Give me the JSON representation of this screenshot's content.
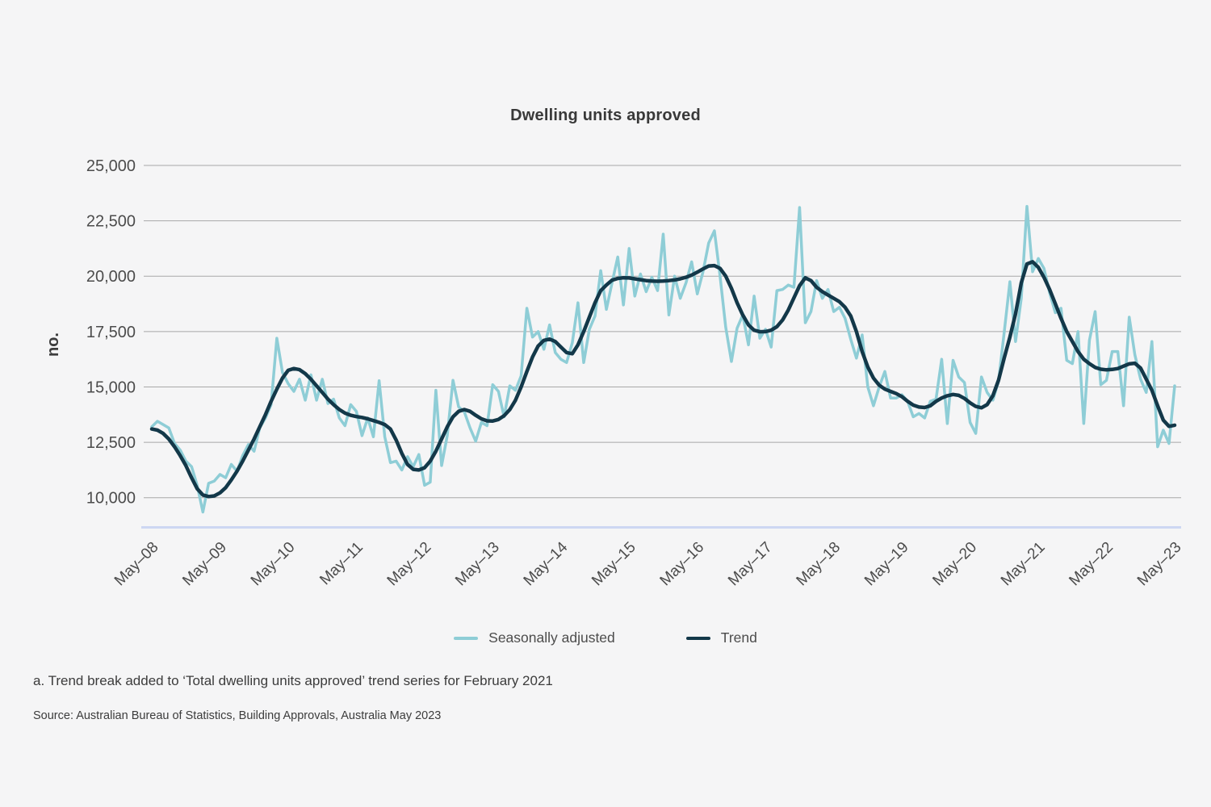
{
  "chart": {
    "title": "Dwelling units approved",
    "y_axis_label": "no.",
    "footnote": "a. Trend break added to ‘Total dwelling units approved’ trend series for February 2021",
    "source": "Source: Australian Bureau of Statistics, Building Approvals, Australia May 2023",
    "colors": {
      "background": "#f5f5f6",
      "gridline": "#a8a8a8",
      "baseline": "#cdd7f2",
      "tick_text": "#4c4c4c",
      "title_text": "#393939"
    }
  },
  "chart_data": {
    "type": "line",
    "title": "Dwelling units approved",
    "ylabel": "no.",
    "xlabel": "",
    "ylim": [
      8660,
      25000
    ],
    "y_ticks": [
      10000,
      12500,
      15000,
      17500,
      20000,
      22500,
      25000
    ],
    "x_tick_labels": [
      "May–08",
      "May–09",
      "May–10",
      "May–11",
      "May–12",
      "May–13",
      "May–14",
      "May–15",
      "May–16",
      "May–17",
      "May–18",
      "May–19",
      "May–20",
      "May–21",
      "May–22",
      "May–23"
    ],
    "x_start": "May-2008",
    "x_end": "May-2023",
    "frequency": "monthly",
    "grid": "horizontal",
    "legend_position": "bottom",
    "series": [
      {
        "name": "Seasonally adjusted",
        "color": "#8ecdd6",
        "values": [
          13200,
          13450,
          13300,
          13150,
          12450,
          12150,
          11650,
          11400,
          10550,
          9350,
          10650,
          10750,
          11050,
          10900,
          11500,
          11200,
          11900,
          12400,
          12100,
          13150,
          13600,
          14200,
          17200,
          15650,
          15150,
          14800,
          15350,
          14400,
          15550,
          14400,
          15350,
          14250,
          14450,
          13600,
          13250,
          14200,
          13900,
          12800,
          13600,
          12750,
          15280,
          12750,
          11580,
          11650,
          11250,
          11850,
          11400,
          11950,
          10560,
          10700,
          14850,
          11450,
          12800,
          15300,
          14100,
          13880,
          13150,
          12550,
          13400,
          13250,
          15100,
          14800,
          13650,
          15050,
          14850,
          15500,
          18550,
          17250,
          17500,
          16700,
          17800,
          16550,
          16250,
          16100,
          17000,
          18800,
          16100,
          17600,
          18200,
          20250,
          18500,
          19700,
          20870,
          18700,
          21250,
          19100,
          20100,
          19300,
          19950,
          19350,
          21900,
          18250,
          20000,
          19000,
          19700,
          20650,
          19200,
          20200,
          21500,
          22050,
          20000,
          17700,
          16150,
          17650,
          18250,
          16900,
          19100,
          17200,
          17600,
          16800,
          19350,
          19400,
          19600,
          19500,
          23100,
          17900,
          18400,
          19800,
          19000,
          19400,
          18400,
          18600,
          18100,
          17150,
          16300,
          17350,
          15000,
          14150,
          15000,
          15700,
          14500,
          14500,
          14650,
          14350,
          13650,
          13800,
          13600,
          14350,
          14450,
          16250,
          13350,
          16200,
          15450,
          15200,
          13400,
          12900,
          15450,
          14750,
          14400,
          15250,
          17450,
          19750,
          17050,
          19000,
          23150,
          20200,
          20800,
          20350,
          19250,
          18350,
          18550,
          16200,
          16050,
          17500,
          13350,
          17100,
          18400,
          15100,
          15300,
          16600,
          16600,
          14150,
          18150,
          16450,
          15350,
          14750,
          17050,
          12300,
          13050,
          12450,
          15050
        ]
      },
      {
        "name": "Trend",
        "color": "#133849",
        "values": [
          13100,
          13050,
          12900,
          12650,
          12300,
          11900,
          11450,
          10900,
          10400,
          10120,
          10050,
          10080,
          10220,
          10450,
          10800,
          11200,
          11650,
          12150,
          12650,
          13200,
          13750,
          14350,
          14900,
          15400,
          15750,
          15830,
          15780,
          15600,
          15350,
          15050,
          14750,
          14450,
          14200,
          13980,
          13820,
          13720,
          13660,
          13620,
          13560,
          13480,
          13400,
          13300,
          13100,
          12600,
          12000,
          11500,
          11280,
          11250,
          11350,
          11650,
          12100,
          12650,
          13200,
          13650,
          13900,
          13980,
          13900,
          13720,
          13560,
          13470,
          13460,
          13530,
          13700,
          13980,
          14400,
          15000,
          15700,
          16350,
          16850,
          17100,
          17160,
          17050,
          16800,
          16550,
          16500,
          16900,
          17500,
          18150,
          18800,
          19350,
          19600,
          19820,
          19900,
          19930,
          19920,
          19880,
          19840,
          19800,
          19780,
          19770,
          19780,
          19800,
          19830,
          19880,
          19950,
          20050,
          20180,
          20330,
          20460,
          20480,
          20350,
          20000,
          19450,
          18800,
          18250,
          17800,
          17560,
          17490,
          17500,
          17560,
          17720,
          18020,
          18470,
          19020,
          19570,
          19930,
          19800,
          19500,
          19300,
          19150,
          19000,
          18850,
          18600,
          18200,
          17500,
          16600,
          15900,
          15400,
          15080,
          14900,
          14800,
          14700,
          14560,
          14350,
          14180,
          14090,
          14070,
          14150,
          14350,
          14500,
          14600,
          14660,
          14620,
          14480,
          14280,
          14120,
          14060,
          14200,
          14600,
          15300,
          16300,
          17250,
          18300,
          19700,
          20550,
          20650,
          20400,
          19950,
          19400,
          18750,
          18100,
          17500,
          17050,
          16600,
          16250,
          16050,
          15880,
          15800,
          15770,
          15790,
          15830,
          15940,
          16040,
          16070,
          15850,
          15350,
          14850,
          14150,
          13500,
          13220,
          13270
        ]
      }
    ]
  }
}
